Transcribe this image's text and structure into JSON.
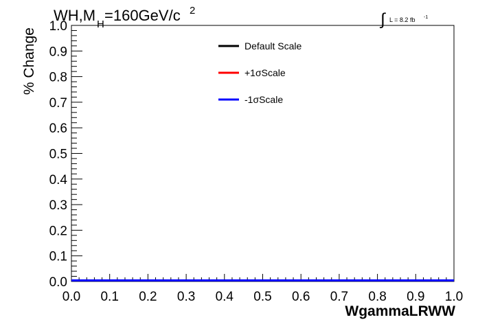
{
  "chart_data": {
    "type": "line",
    "title_main": "WH,M",
    "title_sub": "H",
    "title_rest": "=160GeV/c",
    "title_sup": "2",
    "lumi_label": "L = 8.2 fb",
    "lumi_sup": "-1",
    "xlabel": "WgammaLRWW",
    "ylabel": "% Change",
    "xlim": [
      0.0,
      1.0
    ],
    "ylim": [
      0.0,
      1.0
    ],
    "xticks": [
      "0.0",
      "0.1",
      "0.2",
      "0.3",
      "0.4",
      "0.5",
      "0.6",
      "0.7",
      "0.8",
      "0.9",
      "1.0"
    ],
    "yticks": [
      "0.0",
      "0.1",
      "0.2",
      "0.3",
      "0.4",
      "0.5",
      "0.6",
      "0.7",
      "0.8",
      "0.9",
      "1.0"
    ],
    "grid": false,
    "legend_position": "top-center",
    "series": [
      {
        "name": "Default Scale",
        "color": "#000000",
        "x": [
          0.0,
          1.0
        ],
        "y": [
          0.0,
          0.0
        ]
      },
      {
        "name": "+1σScale",
        "color": "#ff0000",
        "x": [
          0.0,
          1.0
        ],
        "y": [
          0.0,
          0.0
        ]
      },
      {
        "name": "-1σScale",
        "color": "#0000ff",
        "x": [
          0.0,
          1.0
        ],
        "y": [
          0.0,
          0.0
        ]
      }
    ]
  }
}
